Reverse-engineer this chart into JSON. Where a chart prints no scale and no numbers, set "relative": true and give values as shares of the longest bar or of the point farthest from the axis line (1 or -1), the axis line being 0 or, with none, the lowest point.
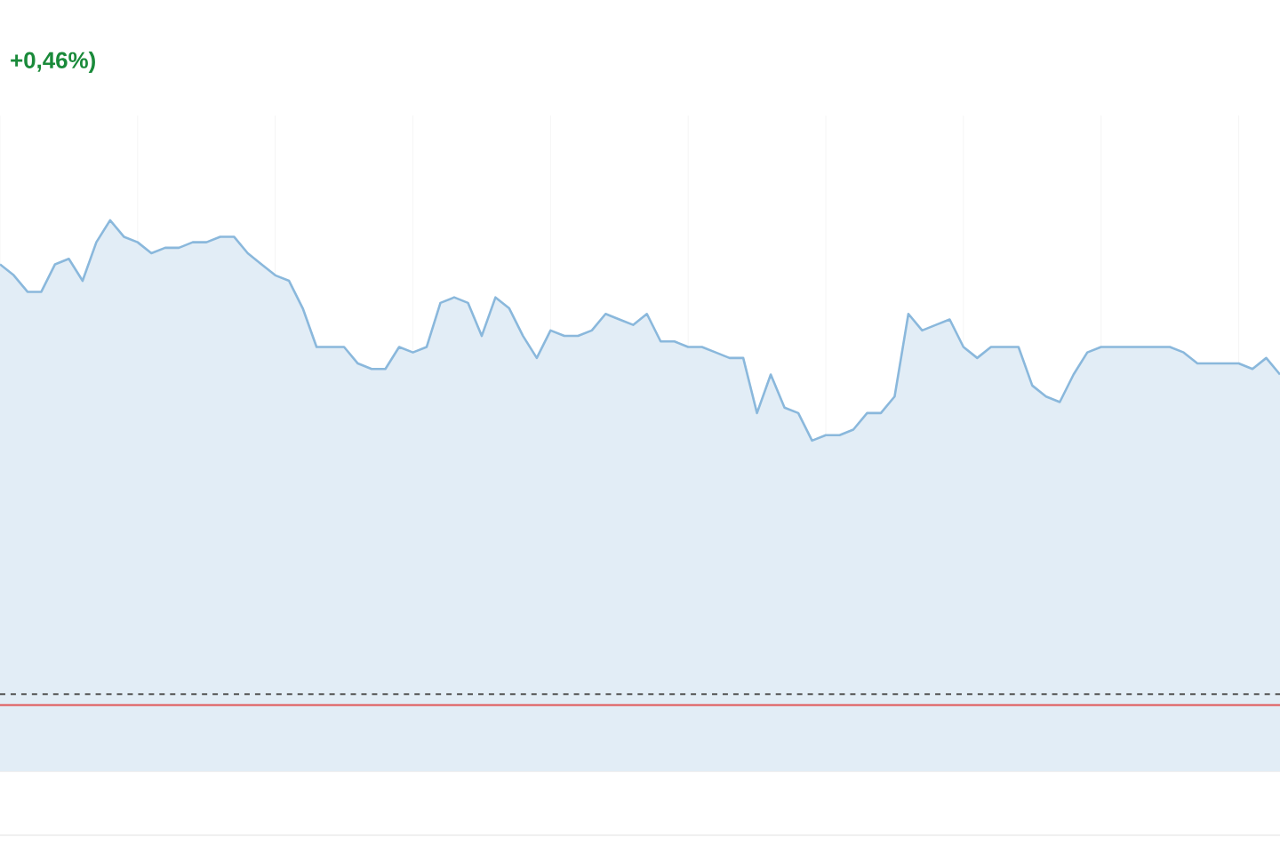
{
  "chart_data": {
    "type": "area",
    "relative": true,
    "grid": true,
    "tick_labels": false,
    "marker": "none",
    "line_style": "solid",
    "annotations": [
      "+0,46%)"
    ],
    "categories": [
      null,
      null,
      null,
      null,
      null,
      null,
      null,
      null,
      null,
      null,
      null,
      null,
      null,
      null,
      null,
      null,
      null,
      null,
      null,
      null,
      null,
      null,
      null,
      null,
      null,
      null,
      null,
      null,
      null,
      null,
      null,
      null,
      null,
      null,
      null,
      null,
      null,
      null,
      null,
      null,
      null,
      null,
      null,
      null,
      null,
      null,
      null,
      null,
      null,
      null,
      null,
      null,
      null,
      null,
      null,
      null,
      null,
      null,
      null,
      null,
      null,
      null,
      null,
      null,
      null,
      null,
      null,
      null,
      null,
      null,
      null,
      null,
      null,
      null,
      null,
      null,
      null,
      null,
      null,
      null,
      null,
      null,
      null,
      null,
      null,
      null,
      null,
      null,
      null,
      null,
      null,
      null,
      null,
      null
    ],
    "series": [
      {
        "color": "#8ab8dc",
        "values": [
          0.92,
          0.9,
          0.87,
          0.87,
          0.92,
          0.93,
          0.89,
          0.96,
          1.0,
          0.97,
          0.96,
          0.94,
          0.95,
          0.95,
          0.96,
          0.96,
          0.97,
          0.97,
          0.94,
          0.92,
          0.9,
          0.89,
          0.84,
          0.77,
          0.77,
          0.77,
          0.74,
          0.73,
          0.73,
          0.77,
          0.76,
          0.77,
          0.85,
          0.86,
          0.85,
          0.79,
          0.86,
          0.84,
          0.79,
          0.75,
          0.8,
          0.79,
          0.79,
          0.8,
          0.83,
          0.82,
          0.81,
          0.83,
          0.78,
          0.78,
          0.77,
          0.77,
          0.76,
          0.75,
          0.75,
          0.65,
          0.72,
          0.66,
          0.65,
          0.6,
          0.61,
          0.61,
          0.62,
          0.65,
          0.65,
          0.68,
          0.83,
          0.8,
          0.81,
          0.82,
          0.77,
          0.75,
          0.77,
          0.77,
          0.77,
          0.7,
          0.68,
          0.67,
          0.72,
          0.76,
          0.77,
          0.77,
          0.77,
          0.77,
          0.77,
          0.77,
          0.76,
          0.74,
          0.74,
          0.74,
          0.74,
          0.73,
          0.75,
          0.72
        ]
      }
    ],
    "ref_lines": [
      {
        "axis": "y",
        "value": 0.14,
        "color": "#555555",
        "line_style": "dashed"
      },
      {
        "axis": "y",
        "value": 0.12,
        "color": "#e05555",
        "line_style": "solid"
      }
    ]
  }
}
